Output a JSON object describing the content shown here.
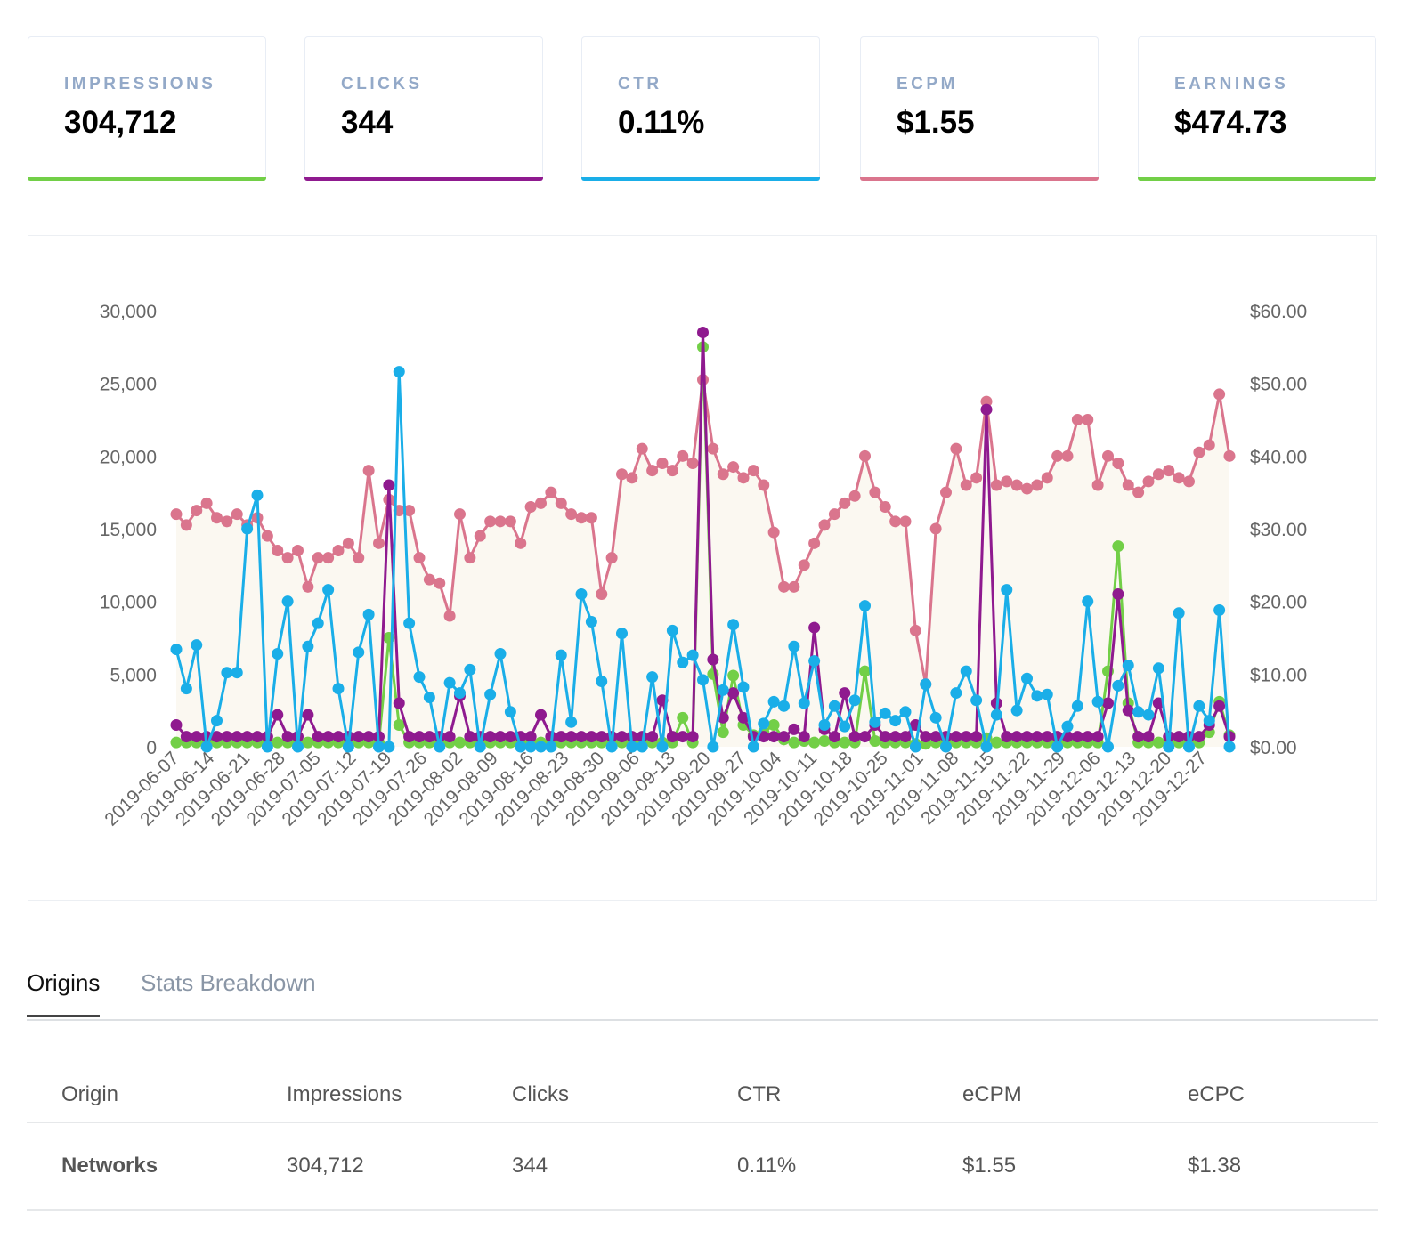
{
  "cards": [
    {
      "label": "IMPRESSIONS",
      "value": "304,712",
      "color": "#72cf47"
    },
    {
      "label": "CLICKS",
      "value": "344",
      "color": "#8f1a8f"
    },
    {
      "label": "CTR",
      "value": "0.11%",
      "color": "#1aaee8"
    },
    {
      "label": "ECPM",
      "value": "$1.55",
      "color": "#da758d"
    },
    {
      "label": "EARNINGS",
      "value": "$474.73",
      "color": "#72cf47"
    }
  ],
  "tabs": [
    {
      "label": "Origins",
      "active": true
    },
    {
      "label": "Stats Breakdown",
      "active": false
    }
  ],
  "table": {
    "headers": [
      "Origin",
      "Impressions",
      "Clicks",
      "CTR",
      "eCPM",
      "eCPC"
    ],
    "rows": [
      [
        "Networks",
        "304,712",
        "344",
        "0.11%",
        "$1.55",
        "$1.38"
      ]
    ]
  },
  "chart_data": {
    "type": "line",
    "y_left": {
      "ticks": [
        "0",
        "5,000",
        "10,000",
        "15,000",
        "20,000",
        "25,000",
        "30,000"
      ],
      "range": [
        0,
        30000
      ]
    },
    "y_right": {
      "ticks": [
        "$0.00",
        "$10.00",
        "$20.00",
        "$30.00",
        "$40.00",
        "$50.00",
        "$60.00"
      ],
      "range": [
        0,
        60
      ]
    },
    "x_ticks": [
      "2019-06-07",
      "2019-06-14",
      "2019-06-21",
      "2019-06-28",
      "2019-07-05",
      "2019-07-12",
      "2019-07-19",
      "2019-07-26",
      "2019-08-02",
      "2019-08-09",
      "2019-08-16",
      "2019-08-23",
      "2019-08-30",
      "2019-09-06",
      "2019-09-13",
      "2019-09-20",
      "2019-09-27",
      "2019-10-04",
      "2019-10-11",
      "2019-10-18",
      "2019-10-25",
      "2019-11-01",
      "2019-11-08",
      "2019-11-15",
      "2019-11-22",
      "2019-11-29",
      "2019-12-06",
      "2019-12-13",
      "2019-12-20",
      "2019-12-27"
    ],
    "x_start": "2019-06-07",
    "x_step_days": 2,
    "grid": false,
    "series": [
      {
        "axis": "right",
        "color": "#da758d",
        "fill": "#fbf8f1",
        "values": [
          32,
          30.5,
          32.5,
          33.5,
          31.5,
          31,
          32,
          30.5,
          31.5,
          29,
          27,
          26,
          27,
          22,
          26,
          26,
          27,
          28,
          26,
          38,
          28,
          34,
          32.5,
          32.5,
          26,
          23,
          22.5,
          18,
          32,
          26,
          29,
          31,
          31,
          31,
          28,
          33,
          33.5,
          35,
          33.5,
          32,
          31.5,
          31.5,
          21,
          26,
          37.5,
          37,
          41,
          38,
          39,
          38,
          40,
          39,
          50.5,
          41,
          37.5,
          38.5,
          37,
          38,
          36,
          29.5,
          22,
          22,
          25,
          28,
          30.5,
          32,
          33.5,
          34.5,
          40,
          35,
          33,
          31,
          31,
          16,
          8.6,
          30,
          35,
          41,
          36,
          37,
          47.5,
          36,
          36.5,
          36,
          35.5,
          36,
          37,
          40,
          40,
          45,
          45,
          36,
          40,
          39,
          36,
          35,
          36.5,
          37.5,
          38,
          37,
          36.5,
          40.5,
          41.5,
          48.5,
          40
        ]
      },
      {
        "axis": "left",
        "color": "#72cf47",
        "values": [
          300,
          300,
          300,
          300,
          300,
          300,
          300,
          300,
          300,
          300,
          300,
          300,
          300,
          300,
          300,
          300,
          300,
          300,
          300,
          300,
          300,
          7500,
          1500,
          300,
          300,
          300,
          300,
          300,
          300,
          300,
          500,
          300,
          300,
          300,
          300,
          300,
          300,
          300,
          300,
          300,
          300,
          300,
          300,
          300,
          300,
          300,
          300,
          300,
          300,
          300,
          2000,
          300,
          27500,
          5000,
          1000,
          4900,
          1500,
          800,
          1000,
          1500,
          500,
          300,
          400,
          300,
          400,
          300,
          300,
          300,
          5200,
          400,
          300,
          300,
          300,
          200,
          200,
          300,
          300,
          300,
          300,
          300,
          600,
          300,
          300,
          300,
          300,
          300,
          300,
          300,
          300,
          300,
          300,
          300,
          5200,
          13800,
          3000,
          300,
          300,
          300,
          300,
          300,
          300,
          300,
          1000,
          3100,
          800
        ]
      },
      {
        "axis": "left",
        "color": "#8f1a8f",
        "values": [
          1500,
          700,
          700,
          700,
          700,
          700,
          700,
          700,
          700,
          700,
          2200,
          700,
          700,
          2200,
          700,
          700,
          700,
          700,
          700,
          700,
          700,
          18000,
          3000,
          700,
          700,
          700,
          700,
          700,
          3500,
          700,
          700,
          700,
          700,
          700,
          700,
          700,
          2200,
          700,
          700,
          700,
          700,
          700,
          700,
          700,
          700,
          700,
          700,
          700,
          3200,
          700,
          700,
          700,
          28500,
          6000,
          2000,
          3700,
          2000,
          700,
          700,
          700,
          700,
          1200,
          700,
          8200,
          1200,
          700,
          3700,
          700,
          700,
          1500,
          700,
          700,
          700,
          1500,
          700,
          700,
          700,
          700,
          700,
          700,
          23200,
          3000,
          700,
          700,
          700,
          700,
          700,
          700,
          700,
          700,
          700,
          700,
          3000,
          10500,
          2500,
          700,
          700,
          3000,
          700,
          700,
          700,
          700,
          1500,
          2800,
          700
        ]
      },
      {
        "axis": "left",
        "color": "#1aaee8",
        "values": [
          6700,
          4000,
          7000,
          0,
          1800,
          5100,
          5100,
          15000,
          17300,
          0,
          6400,
          10000,
          0,
          6900,
          8500,
          10800,
          4000,
          0,
          6500,
          9100,
          0,
          0,
          25800,
          8500,
          4800,
          3400,
          0,
          4400,
          3700,
          5300,
          0,
          3600,
          6400,
          2400,
          0,
          0,
          0,
          0,
          6300,
          1700,
          10500,
          8600,
          4500,
          0,
          7800,
          0,
          0,
          4800,
          0,
          8000,
          5800,
          6300,
          4600,
          0,
          3900,
          8400,
          4100,
          0,
          1600,
          3100,
          2800,
          6900,
          3000,
          5900,
          1500,
          2800,
          1400,
          3200,
          9700,
          1700,
          2300,
          1800,
          2400,
          0,
          4300,
          2000,
          0,
          3700,
          5200,
          3200,
          0,
          2200,
          10800,
          2500,
          4700,
          3500,
          3600,
          0,
          1400,
          2800,
          10000,
          3100,
          0,
          4200,
          5600,
          2400,
          2200,
          5400,
          0,
          9200,
          0,
          2800,
          1800,
          9400,
          0
        ]
      }
    ]
  }
}
